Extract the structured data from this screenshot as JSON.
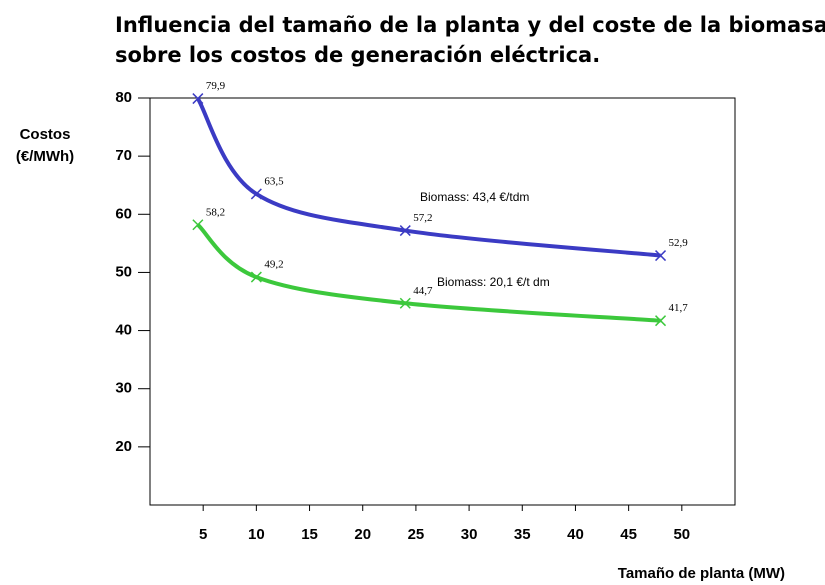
{
  "chart_data": {
    "type": "line",
    "title": [
      "Influencia del tamaño de la planta y del coste de la biomasa",
      "sobre los costos de generación eléctrica."
    ],
    "ylabel": [
      "Costos",
      "(€/MWh)"
    ],
    "xlabel": "Tamaño de planta (MW)",
    "x": [
      4.5,
      10,
      24,
      48
    ],
    "series": [
      {
        "name": "Biomass: 43,4 €/tdm",
        "color": "#3b3bc4",
        "values": [
          79.9,
          63.5,
          57.2,
          52.9
        ],
        "value_labels": [
          "79,9",
          "63,5",
          "57,2",
          "52,9"
        ]
      },
      {
        "name": "Biomass: 20,1 €/t dm",
        "color": "#3cc83c",
        "values": [
          58.2,
          49.2,
          44.7,
          41.7
        ],
        "value_labels": [
          "58,2",
          "49,2",
          "44,7",
          "41,7"
        ]
      }
    ],
    "xlim": [
      0,
      55
    ],
    "xticks": [
      5,
      10,
      15,
      20,
      25,
      30,
      35,
      40,
      45,
      50
    ],
    "ylim": [
      10,
      80
    ],
    "yticks": [
      20,
      30,
      40,
      50,
      60,
      70,
      80
    ]
  }
}
